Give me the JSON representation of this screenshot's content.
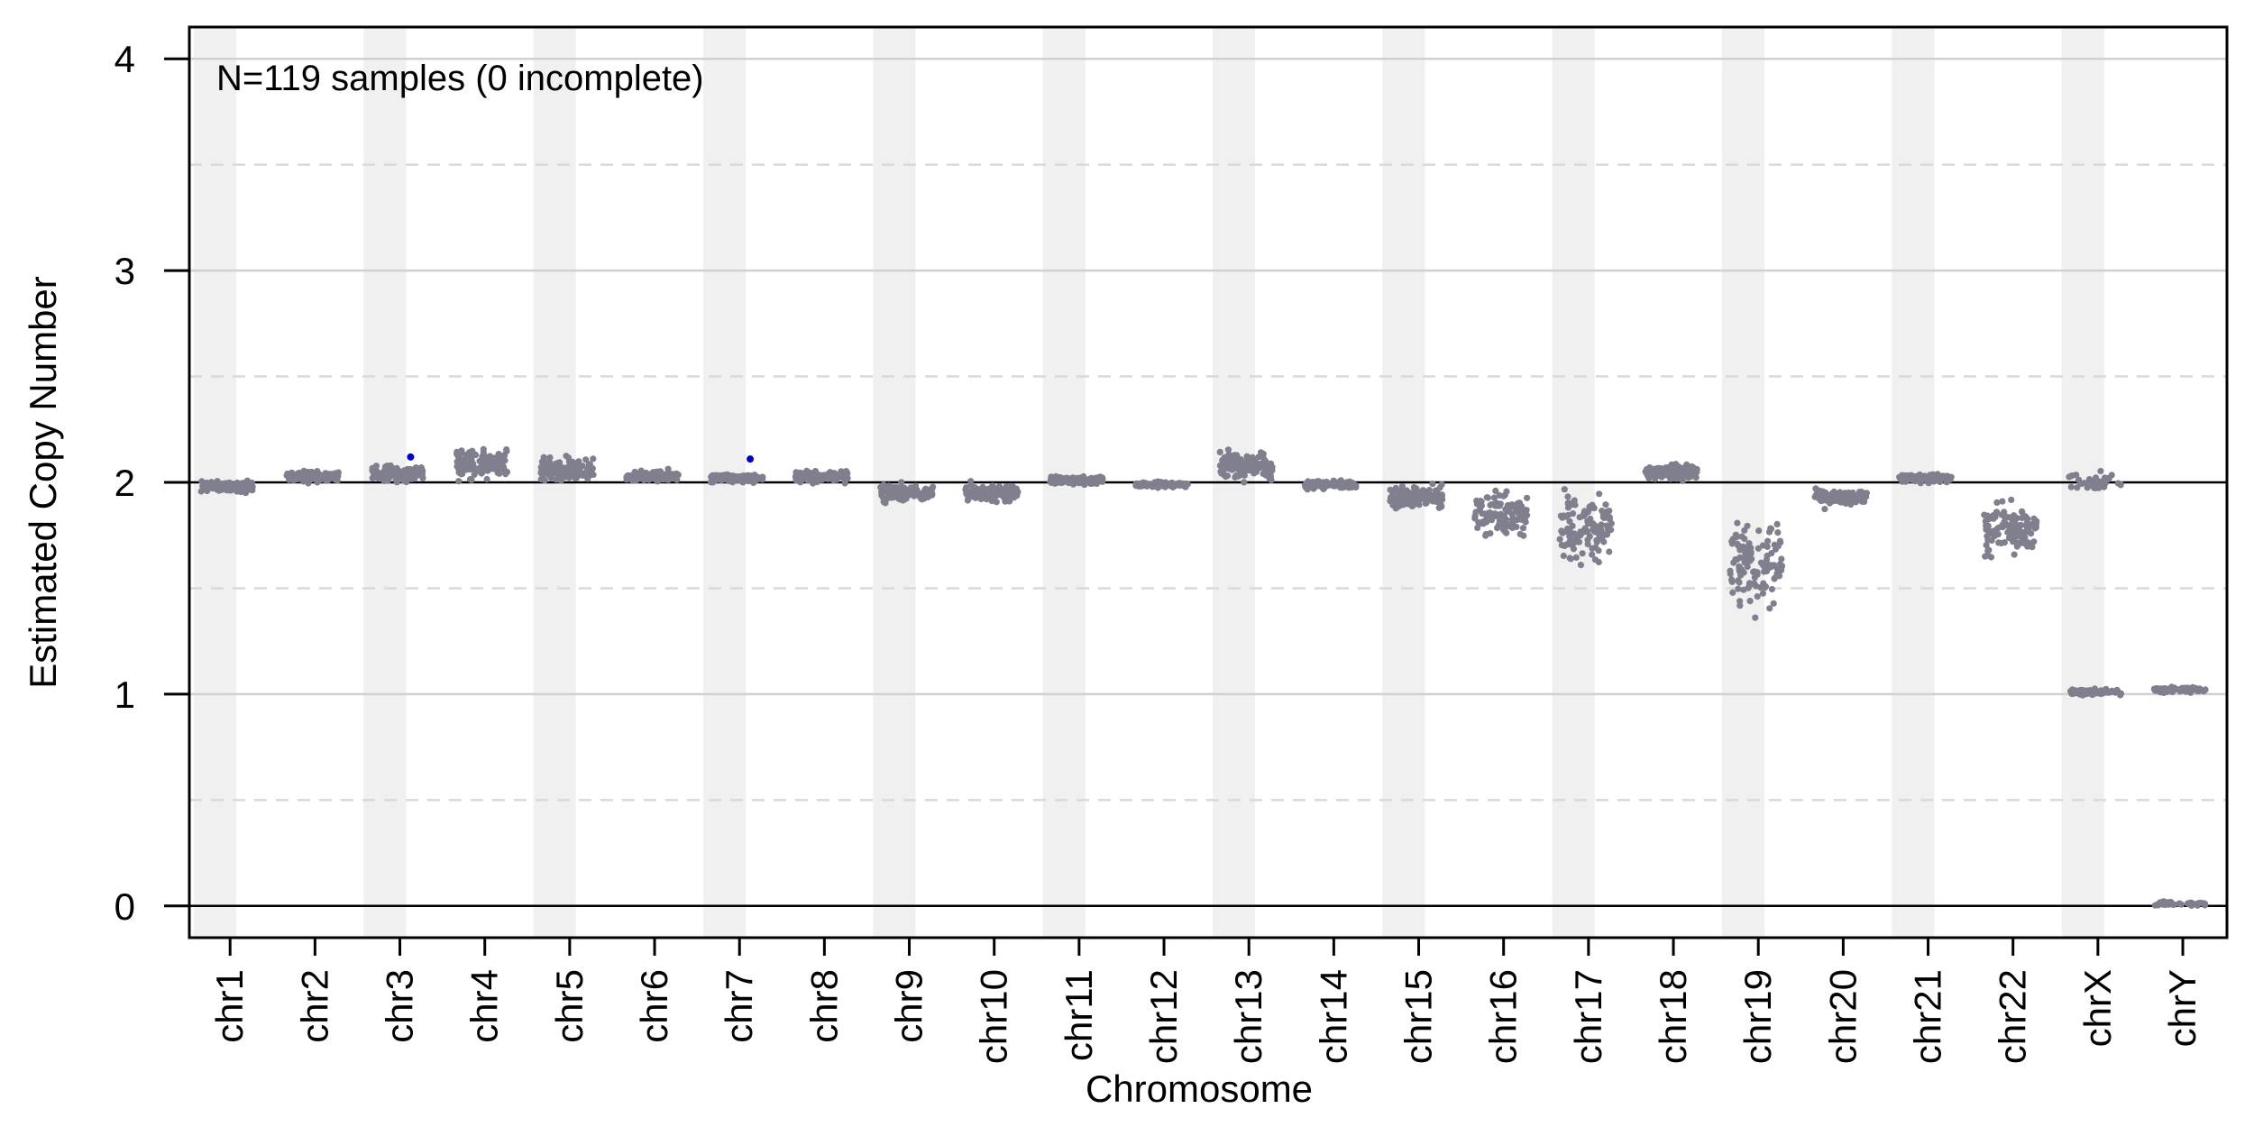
{
  "chart_data": {
    "type": "scatter",
    "title": "",
    "xlabel": "Chromosome",
    "ylabel": "Estimated Copy Number",
    "annotation": "N=119 samples (0 incomplete)",
    "categories": [
      "chr1",
      "chr2",
      "chr3",
      "chr4",
      "chr5",
      "chr6",
      "chr7",
      "chr8",
      "chr9",
      "chr10",
      "chr11",
      "chr12",
      "chr13",
      "chr14",
      "chr15",
      "chr16",
      "chr17",
      "chr18",
      "chr19",
      "chr20",
      "chr21",
      "chr22",
      "chrX",
      "chrY"
    ],
    "ylim": [
      -0.15,
      4.15
    ],
    "yticks": [
      0,
      1,
      2,
      3,
      4
    ],
    "grid": {
      "major_solid": [
        1,
        3,
        4
      ],
      "minor_dashed": [
        0.5,
        1.5,
        2.5,
        3.5
      ],
      "reference_lines": [
        0,
        2
      ]
    },
    "band_colors": {
      "shaded": "#f0f0f0",
      "plain": "#ffffff"
    },
    "point_color": "#7f7f8e",
    "highlight_color": "#0000cc",
    "distributions": [
      {
        "chr": "chr1",
        "groups": [
          {
            "center": 1.98,
            "spread": 0.02,
            "count": 119
          }
        ]
      },
      {
        "chr": "chr2",
        "groups": [
          {
            "center": 2.03,
            "spread": 0.02,
            "count": 119
          }
        ]
      },
      {
        "chr": "chr3",
        "groups": [
          {
            "center": 2.04,
            "spread": 0.03,
            "count": 119
          }
        ]
      },
      {
        "chr": "chr4",
        "groups": [
          {
            "center": 2.08,
            "spread": 0.06,
            "count": 119
          }
        ]
      },
      {
        "chr": "chr5",
        "groups": [
          {
            "center": 2.06,
            "spread": 0.04,
            "count": 119
          }
        ]
      },
      {
        "chr": "chr6",
        "groups": [
          {
            "center": 2.03,
            "spread": 0.02,
            "count": 119
          }
        ]
      },
      {
        "chr": "chr7",
        "groups": [
          {
            "center": 2.02,
            "spread": 0.015,
            "count": 119
          }
        ]
      },
      {
        "chr": "chr8",
        "groups": [
          {
            "center": 2.03,
            "spread": 0.02,
            "count": 119
          }
        ]
      },
      {
        "chr": "chr9",
        "groups": [
          {
            "center": 1.95,
            "spread": 0.03,
            "count": 119
          }
        ]
      },
      {
        "chr": "chr10",
        "groups": [
          {
            "center": 1.95,
            "spread": 0.03,
            "count": 119
          }
        ]
      },
      {
        "chr": "chr11",
        "groups": [
          {
            "center": 2.01,
            "spread": 0.015,
            "count": 119
          }
        ]
      },
      {
        "chr": "chr12",
        "groups": [
          {
            "center": 1.99,
            "spread": 0.01,
            "count": 119
          }
        ]
      },
      {
        "chr": "chr13",
        "groups": [
          {
            "center": 2.08,
            "spread": 0.05,
            "count": 119
          }
        ]
      },
      {
        "chr": "chr14",
        "groups": [
          {
            "center": 1.99,
            "spread": 0.015,
            "count": 119
          }
        ]
      },
      {
        "chr": "chr15",
        "groups": [
          {
            "center": 1.93,
            "spread": 0.04,
            "count": 119
          }
        ]
      },
      {
        "chr": "chr16",
        "groups": [
          {
            "center": 1.85,
            "spread": 0.08,
            "count": 119
          }
        ]
      },
      {
        "chr": "chr17",
        "groups": [
          {
            "center": 1.78,
            "spread": 0.11,
            "count": 119
          }
        ]
      },
      {
        "chr": "chr18",
        "groups": [
          {
            "center": 2.05,
            "spread": 0.03,
            "count": 119
          }
        ]
      },
      {
        "chr": "chr19",
        "groups": [
          {
            "center": 1.62,
            "spread": 0.16,
            "count": 119
          }
        ]
      },
      {
        "chr": "chr20",
        "groups": [
          {
            "center": 1.93,
            "spread": 0.03,
            "count": 119
          }
        ]
      },
      {
        "chr": "chr21",
        "groups": [
          {
            "center": 2.02,
            "spread": 0.015,
            "count": 119
          }
        ]
      },
      {
        "chr": "chr22",
        "groups": [
          {
            "center": 1.77,
            "spread": 0.09,
            "count": 119
          }
        ]
      },
      {
        "chr": "chrX",
        "groups": [
          {
            "center": 2.0,
            "spread": 0.03,
            "count": 40
          },
          {
            "center": 1.01,
            "spread": 0.01,
            "count": 79
          }
        ]
      },
      {
        "chr": "chrY",
        "groups": [
          {
            "center": 0.01,
            "spread": 0.01,
            "count": 40
          },
          {
            "center": 1.02,
            "spread": 0.01,
            "count": 79
          }
        ]
      }
    ],
    "highlighted_points": [
      {
        "chr": "chr3",
        "y": 2.12
      },
      {
        "chr": "chr7",
        "y": 2.11
      }
    ]
  }
}
